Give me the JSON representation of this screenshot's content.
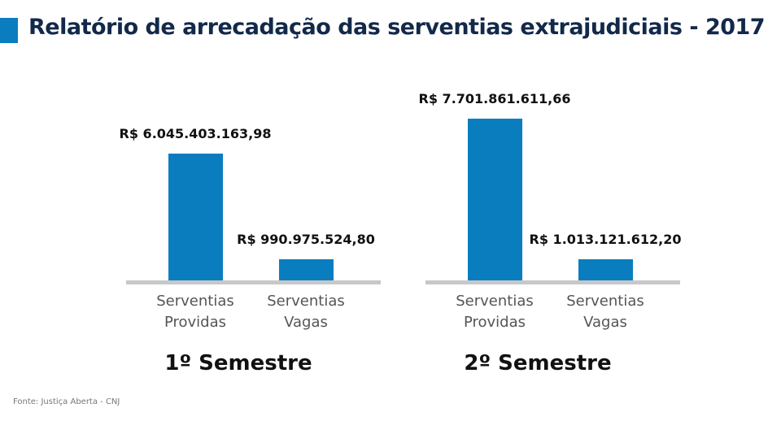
{
  "title": "Relatório de arrecadação das serventias extrajudiciais - 2017",
  "source": "Fonte: Justiça Aberta - CNJ",
  "chart_data": [
    {
      "type": "bar",
      "title": "1º Semestre",
      "categories": [
        "Serventias Providas",
        "Serventias Vagas"
      ],
      "values": [
        6045403163.98,
        990975524.8
      ],
      "value_labels": [
        "R$ 6.045.403.163,98",
        "R$ 990.975.524,80"
      ],
      "color": "#0a7dbf"
    },
    {
      "type": "bar",
      "title": "2º Semestre",
      "categories": [
        "Serventias Providas",
        "Serventias Vagas"
      ],
      "values": [
        7701861611.66,
        1013121612.2
      ],
      "value_labels": [
        "R$ 7.701.861.611,66",
        "R$ 1.013.121.612,20"
      ],
      "color": "#0a7dbf"
    }
  ]
}
